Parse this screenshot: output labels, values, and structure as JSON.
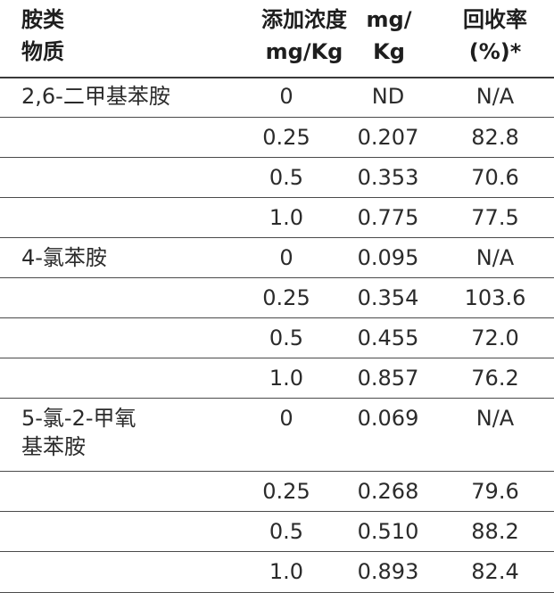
{
  "header": {
    "col_name": [
      "胺类",
      "物质"
    ],
    "col_conc": [
      "添加浓度",
      "mg/Kg"
    ],
    "col_meas": [
      "mg/",
      "Kg"
    ],
    "col_rec": [
      "回收率",
      "(%)*"
    ]
  },
  "rows": [
    {
      "name": [
        "2,6-二甲基苯胺"
      ],
      "conc": "0",
      "meas": "ND",
      "rec": "N/A"
    },
    {
      "name": [],
      "conc": "0.25",
      "meas": "0.207",
      "rec": "82.8"
    },
    {
      "name": [],
      "conc": "0.5",
      "meas": "0.353",
      "rec": "70.6"
    },
    {
      "name": [],
      "conc": "1.0",
      "meas": "0.775",
      "rec": "77.5"
    },
    {
      "name": [
        "4-氯苯胺"
      ],
      "conc": "0",
      "meas": "0.095",
      "rec": "N/A"
    },
    {
      "name": [],
      "conc": "0.25",
      "meas": "0.354",
      "rec": "103.6"
    },
    {
      "name": [],
      "conc": "0.5",
      "meas": "0.455",
      "rec": "72.0"
    },
    {
      "name": [],
      "conc": "1.0",
      "meas": "0.857",
      "rec": "76.2"
    },
    {
      "name": [
        "5-氯-2-甲氧",
        "基苯胺"
      ],
      "conc": "0",
      "meas": "0.069",
      "rec": "N/A"
    },
    {
      "name": [],
      "conc": "0.25",
      "meas": "0.268",
      "rec": "79.6"
    },
    {
      "name": [],
      "conc": "0.5",
      "meas": "0.510",
      "rec": "88.2"
    },
    {
      "name": [],
      "conc": "1.0",
      "meas": "0.893",
      "rec": "82.4"
    }
  ]
}
